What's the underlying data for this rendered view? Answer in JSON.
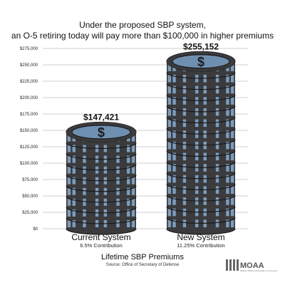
{
  "chart_data": {
    "type": "bar",
    "title_lines": [
      "Under the proposed SBP system,",
      "an O-5 retiring today will pay more than $100,000 in higher premiums"
    ],
    "y_ticks": [
      "$0",
      "$25,000",
      "$50,000",
      "$75,000",
      "$100,000",
      "$125,000",
      "$150,000",
      "$175,000",
      "$200,000",
      "$225,000",
      "$250,000",
      "$275,000"
    ],
    "ylim": [
      0,
      275000
    ],
    "categories": [
      "Current System",
      "New System"
    ],
    "sublabels": [
      "6.5% Contribution",
      "11.25% Contribution"
    ],
    "values": [
      147421,
      255152
    ],
    "value_labels": [
      "$147,421",
      "$255,152"
    ],
    "xlabel": "Lifetime SBP Premiums",
    "source": "Source: Office of Secretary of Defense",
    "grid": true
  },
  "logo": {
    "text": "MOAA",
    "subtext": "Military Officers Association of America"
  },
  "colors": {
    "coin_dark": "#3b3b3d",
    "coin_edge": "#2a2a2c",
    "coin_face": "#6f8fb0",
    "coin_stripe": "#7d9dbd",
    "grid": "#bfbfbf"
  }
}
